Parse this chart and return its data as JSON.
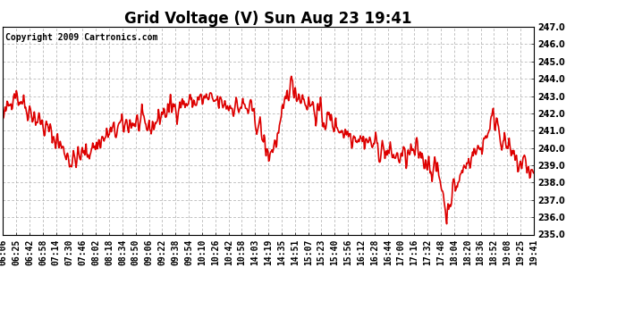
{
  "title": "Grid Voltage (V) Sun Aug 23 19:41",
  "copyright": "Copyright 2009 Cartronics.com",
  "ylim": [
    235.0,
    247.0
  ],
  "yticks": [
    235.0,
    236.0,
    237.0,
    238.0,
    239.0,
    240.0,
    241.0,
    242.0,
    243.0,
    244.0,
    245.0,
    246.0,
    247.0
  ],
  "line_color": "#dd0000",
  "bg_color": "#ffffff",
  "grid_color": "#aaaaaa",
  "title_fontsize": 12,
  "tick_fontsize": 7,
  "copyright_fontsize": 7,
  "xtick_labels": [
    "06:06",
    "06:25",
    "06:42",
    "06:58",
    "07:14",
    "07:30",
    "07:46",
    "08:02",
    "08:18",
    "08:34",
    "08:50",
    "09:06",
    "09:22",
    "09:38",
    "09:54",
    "10:10",
    "10:26",
    "10:42",
    "10:58",
    "14:03",
    "14:19",
    "14:35",
    "14:51",
    "15:07",
    "15:23",
    "15:40",
    "15:56",
    "16:12",
    "16:28",
    "16:44",
    "17:00",
    "17:16",
    "17:32",
    "17:48",
    "18:04",
    "18:20",
    "18:36",
    "18:52",
    "19:08",
    "19:25",
    "19:41"
  ],
  "line_width": 1.2,
  "n_points": 800,
  "seed": 42
}
